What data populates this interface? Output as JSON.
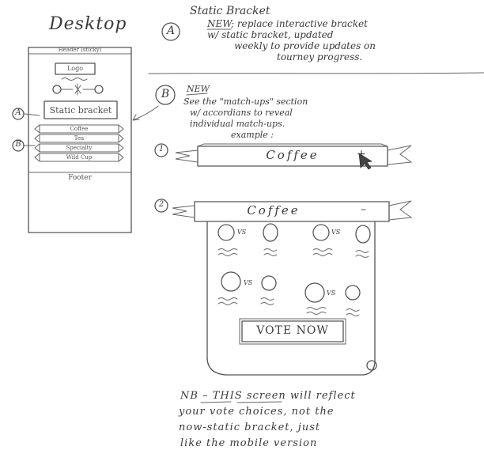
{
  "left": {
    "title": "Desktop",
    "wireframe": {
      "header": "Header (sticky)",
      "logo": "Logo",
      "static_bracket": "Static bracket",
      "categories": [
        "Coffee",
        "Tea",
        "Specialty",
        "Wild Cup"
      ],
      "footer": "Footer"
    },
    "markers": [
      "A",
      "B"
    ]
  },
  "section_a": {
    "marker": "A",
    "title": "Static Bracket",
    "new_label": "NEW",
    "lines": [
      "; replace interactive bracket",
      "w/ static bracket, updated",
      "weekly to provide updates on",
      "tourney progress."
    ]
  },
  "section_b": {
    "marker": "B",
    "new_label": "NEW",
    "lines": [
      "See the \"match-ups\" section",
      "w/ accordians to reveal",
      "individual match-ups."
    ],
    "example_label": "example :"
  },
  "example_1": {
    "number": "1",
    "banner": "Coffee",
    "toggle": "+"
  },
  "example_2": {
    "number": "2",
    "banner": "Coffee",
    "toggle": "–",
    "vs_label": "VS",
    "vote_button": "VOTE NOW"
  },
  "footnote": {
    "lines": [
      "NB – THIS screen will reflect",
      "your vote choices, not the",
      "now-static bracket, just",
      "like the mobile version"
    ]
  }
}
